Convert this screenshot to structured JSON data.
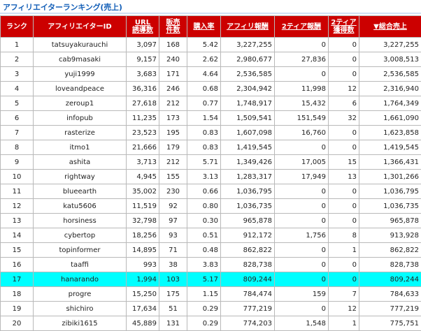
{
  "title": "アフィリエイターランキング(売上)",
  "columns": [
    {
      "label": "ランク",
      "sortable": false
    },
    {
      "label": "アフィリエイターID",
      "sortable": false
    },
    {
      "label": "URL\n誘導数",
      "sortable": true
    },
    {
      "label": "販売\n件数",
      "sortable": true
    },
    {
      "label": "購入率",
      "sortable": true
    },
    {
      "label": "アフィリ報酬",
      "sortable": true
    },
    {
      "label": "2ティア報酬",
      "sortable": true
    },
    {
      "label": "2ティア\n獲得数",
      "sortable": true
    },
    {
      "label": "▼総合売上",
      "sortable": true
    }
  ],
  "colors": {
    "header_bg": "#cc0000",
    "highlight": "#00ffff",
    "title": "#1560b8"
  },
  "highlight_rank": "17",
  "rows": [
    [
      "1",
      "tatsuyakurauchi",
      "3,097",
      "168",
      "5.42",
      "3,227,255",
      "0",
      "0",
      "3,227,255"
    ],
    [
      "2",
      "cab9masaki",
      "9,157",
      "240",
      "2.62",
      "2,980,677",
      "27,836",
      "0",
      "3,008,513"
    ],
    [
      "3",
      "yuji1999",
      "3,683",
      "171",
      "4.64",
      "2,536,585",
      "0",
      "0",
      "2,536,585"
    ],
    [
      "4",
      "loveandpeace",
      "36,316",
      "246",
      "0.68",
      "2,304,942",
      "11,998",
      "12",
      "2,316,940"
    ],
    [
      "5",
      "zeroup1",
      "27,618",
      "212",
      "0.77",
      "1,748,917",
      "15,432",
      "6",
      "1,764,349"
    ],
    [
      "6",
      "infopub",
      "11,235",
      "173",
      "1.54",
      "1,509,541",
      "151,549",
      "32",
      "1,661,090"
    ],
    [
      "7",
      "rasterize",
      "23,523",
      "195",
      "0.83",
      "1,607,098",
      "16,760",
      "0",
      "1,623,858"
    ],
    [
      "8",
      "itmo1",
      "21,666",
      "179",
      "0.83",
      "1,419,545",
      "0",
      "0",
      "1,419,545"
    ],
    [
      "9",
      "ashita",
      "3,713",
      "212",
      "5.71",
      "1,349,426",
      "17,005",
      "15",
      "1,366,431"
    ],
    [
      "10",
      "rightway",
      "4,945",
      "155",
      "3.13",
      "1,283,317",
      "17,949",
      "13",
      "1,301,266"
    ],
    [
      "11",
      "blueearth",
      "35,002",
      "230",
      "0.66",
      "1,036,795",
      "0",
      "0",
      "1,036,795"
    ],
    [
      "12",
      "katu5606",
      "11,519",
      "92",
      "0.80",
      "1,036,735",
      "0",
      "0",
      "1,036,735"
    ],
    [
      "13",
      "horsiness",
      "32,798",
      "97",
      "0.30",
      "965,878",
      "0",
      "0",
      "965,878"
    ],
    [
      "14",
      "cybertop",
      "18,256",
      "93",
      "0.51",
      "912,172",
      "1,756",
      "8",
      "913,928"
    ],
    [
      "15",
      "topinformer",
      "14,895",
      "71",
      "0.48",
      "862,822",
      "0",
      "1",
      "862,822"
    ],
    [
      "16",
      "taaffi",
      "993",
      "38",
      "3.83",
      "828,738",
      "0",
      "0",
      "828,738"
    ],
    [
      "17",
      "hanarando",
      "1,994",
      "103",
      "5.17",
      "809,244",
      "0",
      "0",
      "809,244"
    ],
    [
      "18",
      "progre",
      "15,250",
      "175",
      "1.15",
      "784,474",
      "159",
      "7",
      "784,633"
    ],
    [
      "19",
      "shichiro",
      "17,634",
      "51",
      "0.29",
      "777,219",
      "0",
      "12",
      "777,219"
    ],
    [
      "20",
      "zibiki1615",
      "45,889",
      "131",
      "0.29",
      "774,203",
      "1,548",
      "1",
      "775,751"
    ]
  ]
}
